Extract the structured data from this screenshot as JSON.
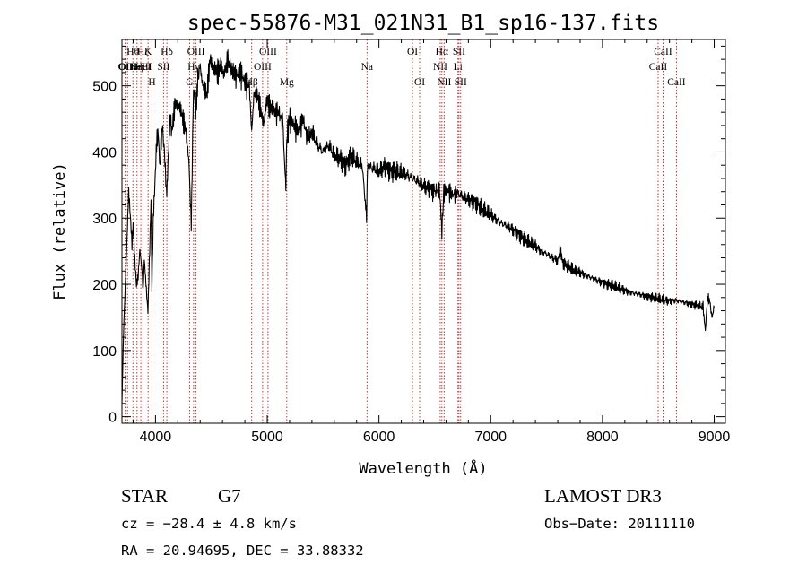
{
  "chart_data": {
    "type": "line",
    "title": "spec-55876-M31_021N31_B1_sp16-137.fits",
    "xlabel": "Wavelength (Å)",
    "ylabel": "Flux (relative)",
    "xlim": [
      3700,
      9100
    ],
    "ylim": [
      -10,
      570
    ],
    "xticks": [
      4000,
      5000,
      6000,
      7000,
      8000,
      9000
    ],
    "xtick_labels": [
      "4000",
      "5000",
      "6000",
      "7000",
      "8000",
      "9000"
    ],
    "yticks": [
      0,
      100,
      200,
      300,
      400,
      500
    ],
    "ytick_labels": [
      "0",
      "100",
      "200",
      "300",
      "400",
      "500"
    ],
    "grid": false,
    "series": [
      {
        "name": "flux",
        "x": [
          3700,
          3715,
          3730,
          3745,
          3760,
          3775,
          3790,
          3800,
          3815,
          3830,
          3845,
          3860,
          3875,
          3889,
          3900,
          3915,
          3933,
          3945,
          3960,
          3968,
          3980,
          3995,
          4010,
          4025,
          4040,
          4060,
          4080,
          4101,
          4115,
          4130,
          4150,
          4180,
          4210,
          4240,
          4270,
          4300,
          4320,
          4340,
          4360,
          4380,
          4400,
          4430,
          4460,
          4490,
          4520,
          4550,
          4580,
          4610,
          4640,
          4680,
          4720,
          4760,
          4800,
          4840,
          4861,
          4880,
          4910,
          4940,
          4970,
          5000,
          5030,
          5060,
          5100,
          5140,
          5167,
          5172,
          5183,
          5200,
          5240,
          5280,
          5320,
          5360,
          5400,
          5450,
          5500,
          5550,
          5600,
          5650,
          5700,
          5750,
          5800,
          5850,
          5889,
          5895,
          5900,
          5950,
          6000,
          6050,
          6100,
          6150,
          6200,
          6250,
          6300,
          6350,
          6400,
          6450,
          6500,
          6540,
          6563,
          6580,
          6620,
          6660,
          6700,
          6750,
          6800,
          6850,
          6900,
          6950,
          7000,
          7050,
          7100,
          7150,
          7200,
          7250,
          7300,
          7350,
          7400,
          7450,
          7500,
          7550,
          7600,
          7620,
          7650,
          7700,
          7750,
          7800,
          7850,
          7900,
          7950,
          8000,
          8050,
          8100,
          8150,
          8200,
          8250,
          8300,
          8350,
          8400,
          8450,
          8500,
          8550,
          8600,
          8650,
          8700,
          8750,
          8800,
          8850,
          8900,
          8920,
          8940,
          8960,
          8980,
          9000
        ],
        "values": [
          20,
          130,
          200,
          270,
          340,
          300,
          260,
          290,
          240,
          200,
          210,
          250,
          230,
          190,
          240,
          200,
          160,
          230,
          330,
          190,
          300,
          350,
          410,
          430,
          380,
          440,
          400,
          330,
          400,
          450,
          430,
          480,
          470,
          450,
          440,
          380,
          290,
          500,
          460,
          510,
          530,
          500,
          480,
          550,
          520,
          520,
          535,
          510,
          540,
          525,
          515,
          520,
          505,
          500,
          430,
          490,
          480,
          470,
          440,
          480,
          470,
          460,
          460,
          445,
          340,
          400,
          430,
          450,
          440,
          430,
          450,
          420,
          430,
          410,
          400,
          410,
          395,
          390,
          380,
          395,
          385,
          380,
          300,
          370,
          378,
          375,
          370,
          378,
          372,
          370,
          368,
          365,
          360,
          355,
          348,
          345,
          340,
          345,
          280,
          340,
          342,
          335,
          338,
          332,
          328,
          325,
          318,
          310,
          305,
          298,
          292,
          288,
          282,
          276,
          268,
          262,
          258,
          250,
          246,
          240,
          236,
          250,
          232,
          226,
          220,
          218,
          214,
          210,
          206,
          203,
          200,
          197,
          194,
          191,
          188,
          186,
          184,
          182,
          180,
          178,
          176,
          175,
          176,
          174,
          172,
          170,
          168,
          166,
          130,
          180,
          175,
          150,
          165
        ]
      }
    ],
    "line_markers": [
      {
        "wl": 3729,
        "label": "OII",
        "row": 2
      },
      {
        "wl": 3750,
        "label": "OIII",
        "row": 2
      },
      {
        "wl": 3798,
        "label": "Hθ",
        "row": 1
      },
      {
        "wl": 3835,
        "label": "Hη",
        "row": 2
      },
      {
        "wl": 3869,
        "label": "NeIII",
        "row": 2
      },
      {
        "wl": 3889,
        "label": "Hζ",
        "row": 1
      },
      {
        "wl": 3889,
        "label": "HeI",
        "row": 2
      },
      {
        "wl": 3934,
        "label": "K",
        "row": 1
      },
      {
        "wl": 3969,
        "label": "H",
        "row": 3
      },
      {
        "wl": 4072,
        "label": "SII",
        "row": 2
      },
      {
        "wl": 4102,
        "label": "Hδ",
        "row": 1
      },
      {
        "wl": 4305,
        "label": "G",
        "row": 3
      },
      {
        "wl": 4341,
        "label": "Hγ",
        "row": 2
      },
      {
        "wl": 4363,
        "label": "OIII",
        "row": 1
      },
      {
        "wl": 4861,
        "label": "Hβ",
        "row": 3
      },
      {
        "wl": 4959,
        "label": "OIII",
        "row": 2
      },
      {
        "wl": 5007,
        "label": "OIII",
        "row": 1
      },
      {
        "wl": 5175,
        "label": "Mg",
        "row": 3
      },
      {
        "wl": 5893,
        "label": "Na",
        "row": 2
      },
      {
        "wl": 6300,
        "label": "OI",
        "row": 1
      },
      {
        "wl": 6364,
        "label": "OI",
        "row": 3
      },
      {
        "wl": 6548,
        "label": "NII",
        "row": 2
      },
      {
        "wl": 6563,
        "label": "Hα",
        "row": 1
      },
      {
        "wl": 6583,
        "label": "NII",
        "row": 3
      },
      {
        "wl": 6707,
        "label": "Li",
        "row": 2
      },
      {
        "wl": 6716,
        "label": "SII",
        "row": 1
      },
      {
        "wl": 6731,
        "label": "SII",
        "row": 3
      },
      {
        "wl": 8498,
        "label": "CaII",
        "row": 2
      },
      {
        "wl": 8542,
        "label": "CaII",
        "row": 1
      },
      {
        "wl": 8662,
        "label": "CaII",
        "row": 3
      }
    ]
  },
  "info": {
    "object_class": "STAR",
    "subclass": "G7",
    "survey": "LAMOST DR3",
    "redshift_text": "cz = −28.4 ± 4.8 km/s",
    "obs_date_text": "Obs−Date: 20111110",
    "coords_text": "RA =  20.94695, DEC =  33.88332"
  }
}
